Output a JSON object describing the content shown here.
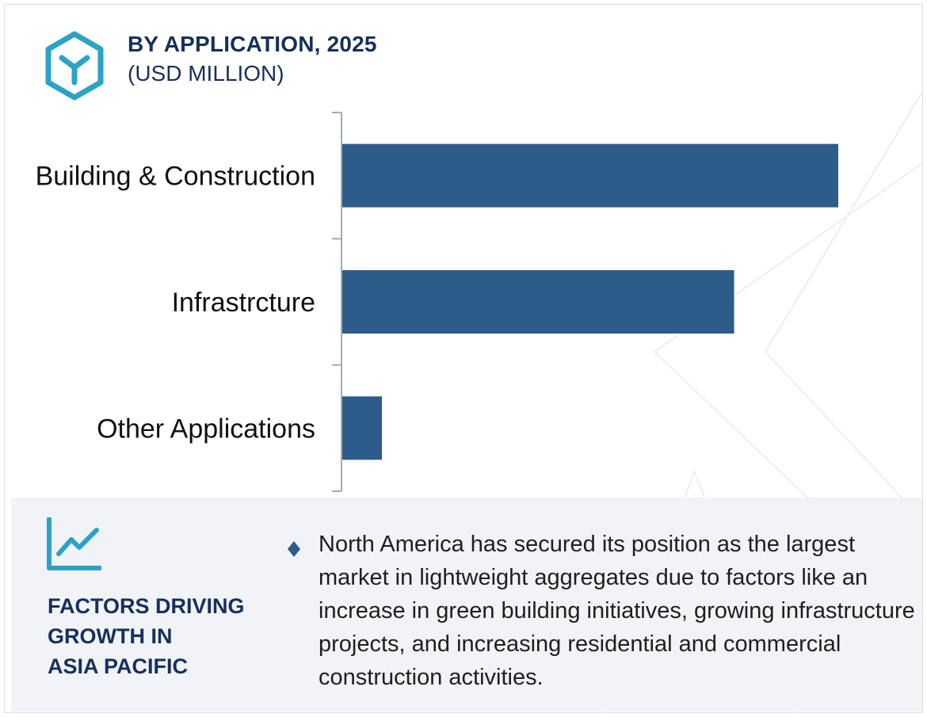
{
  "header": {
    "title": "BY APPLICATION, 2025",
    "subtitle": "(USD MILLION)"
  },
  "chart_data": {
    "type": "bar",
    "orientation": "horizontal",
    "title": "BY APPLICATION, 2025",
    "subtitle": "(USD MILLION)",
    "categories": [
      "Building & Construction",
      "Infrastrcture",
      "Other Applications"
    ],
    "values": [
      100,
      79,
      8
    ],
    "value_axis_visible": false,
    "grid": false,
    "bar_color": "#2e5c8a"
  },
  "factors": {
    "heading_lines": [
      "FACTORS DRIVING",
      "GROWTH IN",
      "ASIA PACIFIC"
    ],
    "description": "North America has secured its position as the largest market in lightweight aggregates due to factors like an increase in green building initiatives, growing infrastructure projects, and increasing residential and commercial construction activities."
  },
  "icons": {
    "logo": "hexagon-logo-icon",
    "trend": "line-chart-icon",
    "bullet": "diamond-bullet-icon"
  },
  "colors": {
    "navy": "#16305b",
    "accent": "#2aa3c6",
    "bar": "#2e5c8a",
    "panel": "#f1f3f7"
  }
}
